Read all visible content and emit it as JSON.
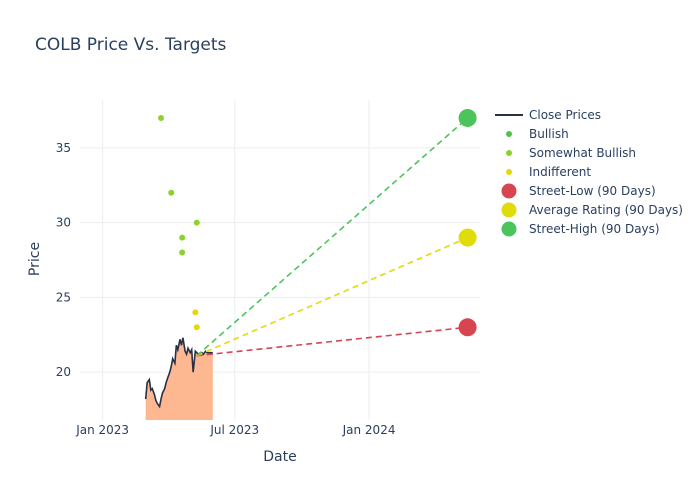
{
  "chart_data": {
    "type": "line",
    "title": "COLB Price Vs. Targets",
    "xlabel": "Date",
    "ylabel": "Price",
    "x_ticks": [
      "Jan 2023",
      "Jul 2023",
      "Jan 2024"
    ],
    "y_ticks": [
      20,
      25,
      30,
      35
    ],
    "ylim": [
      16.8,
      38.2
    ],
    "colors": {
      "close": "#2a3045",
      "area": "#fdb891",
      "bullish": "#4cc44c",
      "somewhat_bullish": "#8cd12e",
      "indifferent": "#e6d60e",
      "street_low": "#d64550",
      "average": "#e0dc0a",
      "street_high": "#4cc45c"
    },
    "close_prices": {
      "name": "Close Prices",
      "x": [
        "2023-03-01",
        "2023-03-03",
        "2023-03-06",
        "2023-03-08",
        "2023-03-10",
        "2023-03-13",
        "2023-03-15",
        "2023-03-17",
        "2023-03-20",
        "2023-03-22",
        "2023-03-24",
        "2023-03-27",
        "2023-03-29",
        "2023-03-31",
        "2023-04-03",
        "2023-04-05",
        "2023-04-07",
        "2023-04-10",
        "2023-04-12",
        "2023-04-14",
        "2023-04-17",
        "2023-04-19",
        "2023-04-21",
        "2023-04-24",
        "2023-04-26",
        "2023-04-28",
        "2023-05-01",
        "2023-05-03",
        "2023-05-05",
        "2023-05-08",
        "2023-05-10",
        "2023-05-12",
        "2023-05-15",
        "2023-05-17",
        "2023-05-19",
        "2023-05-22",
        "2023-05-24",
        "2023-05-26",
        "2023-05-29",
        "2023-05-30",
        "2023-06-01"
      ],
      "y": [
        18.2,
        19.3,
        19.5,
        18.8,
        18.9,
        18.5,
        18.1,
        17.9,
        17.7,
        18.2,
        18.6,
        18.9,
        19.3,
        19.6,
        20.0,
        20.4,
        20.9,
        20.6,
        21.8,
        21.5,
        22.2,
        21.8,
        22.3,
        21.4,
        21.2,
        21.6,
        21.3,
        21.5,
        20.0,
        21.4,
        21.3,
        21.2,
        21.3,
        21.3,
        21.2,
        21.4,
        21.3,
        21.3,
        21.3,
        21.3,
        21.3
      ]
    },
    "analyst_ratings": [
      {
        "name": "Bullish",
        "points": []
      },
      {
        "name": "Somewhat Bullish",
        "points": [
          {
            "x": "2023-03-22",
            "y": 37
          },
          {
            "x": "2023-04-05",
            "y": 32
          },
          {
            "x": "2023-04-20",
            "y": 29
          },
          {
            "x": "2023-04-20",
            "y": 28
          },
          {
            "x": "2023-05-10",
            "y": 30
          }
        ]
      },
      {
        "name": "Indifferent",
        "points": [
          {
            "x": "2023-05-08",
            "y": 24
          },
          {
            "x": "2023-05-10",
            "y": 23
          }
        ]
      }
    ],
    "targets": {
      "start": {
        "x": "2023-05-10",
        "y": 21.1
      },
      "end_x": "2024-05-15",
      "street_low": {
        "name": "Street-Low (90 Days)",
        "value": 23
      },
      "average": {
        "name": "Average Rating (90 Days)",
        "value": 29
      },
      "street_high": {
        "name": "Street-High (90 Days)",
        "value": 37
      }
    },
    "legend": [
      "Close Prices",
      "Bullish",
      "Somewhat Bullish",
      "Indifferent",
      "Street-Low (90 Days)",
      "Average Rating (90 Days)",
      "Street-High (90 Days)"
    ],
    "legend_position": "right",
    "grid": true
  }
}
